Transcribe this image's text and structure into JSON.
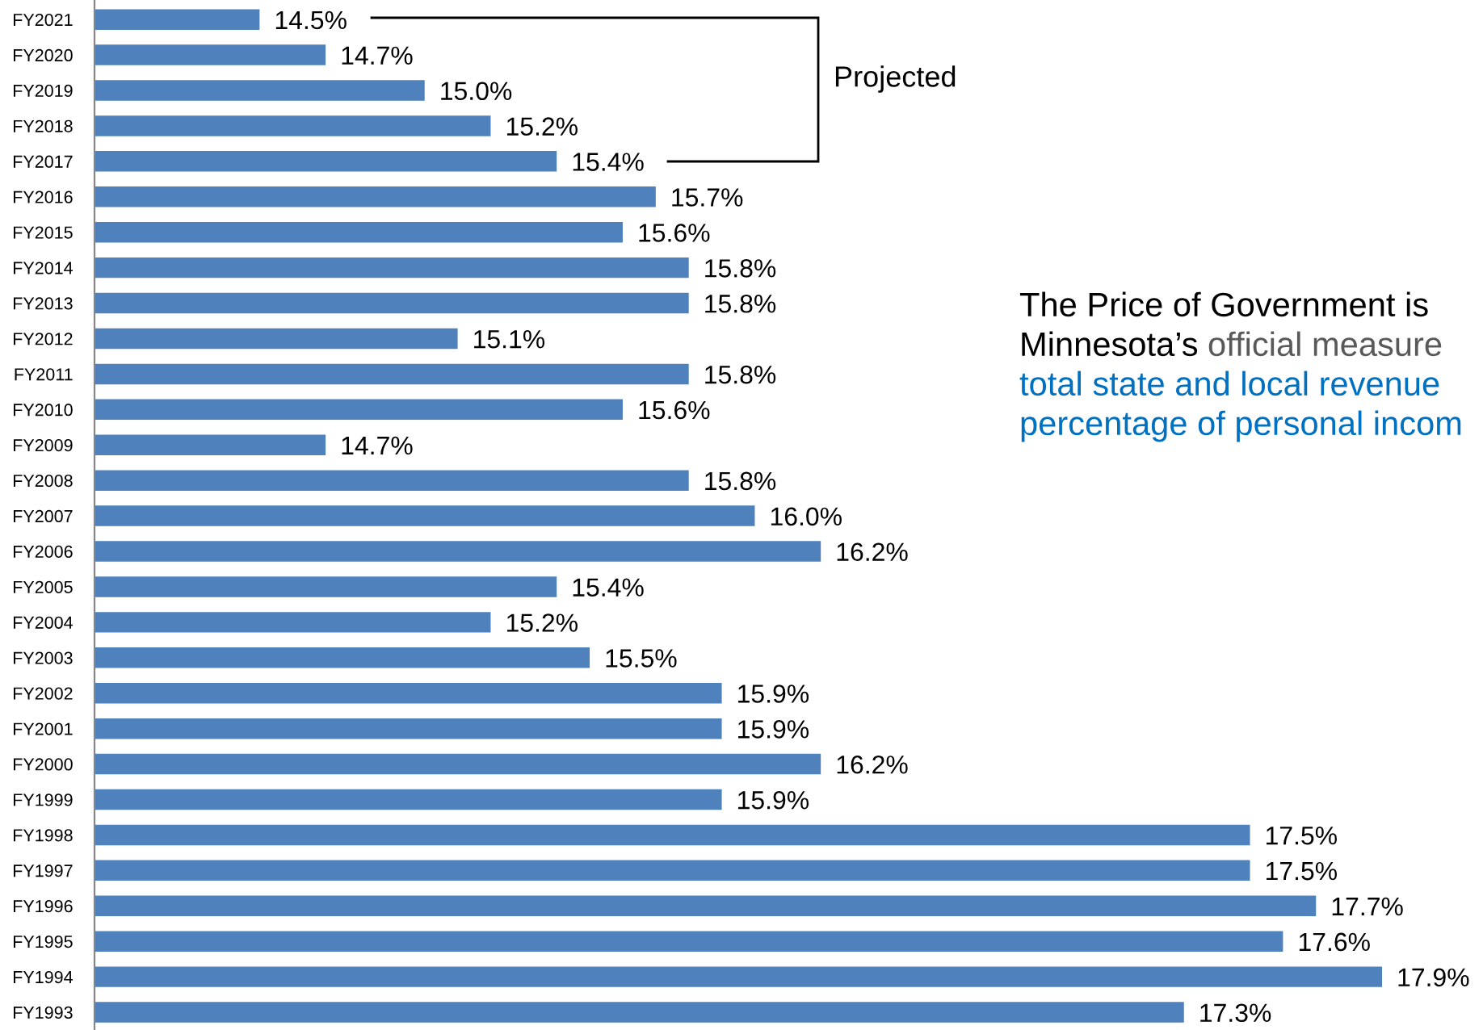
{
  "chart_data": {
    "type": "bar",
    "orientation": "horizontal",
    "categories": [
      "FY2021",
      "FY2020",
      "FY2019",
      "FY2018",
      "FY2017",
      "FY2016",
      "FY2015",
      "FY2014",
      "FY2013",
      "FY2012",
      "FY2011",
      "FY2010",
      "FY2009",
      "FY2008",
      "FY2007",
      "FY2006",
      "FY2005",
      "FY2004",
      "FY2003",
      "FY2002",
      "FY2001",
      "FY2000",
      "FY1999",
      "FY1998",
      "FY1997",
      "FY1996",
      "FY1995",
      "FY1994",
      "FY1993"
    ],
    "values": [
      14.5,
      14.7,
      15.0,
      15.2,
      15.4,
      15.7,
      15.6,
      15.8,
      15.8,
      15.1,
      15.8,
      15.6,
      14.7,
      15.8,
      16.0,
      16.2,
      15.4,
      15.2,
      15.5,
      15.9,
      15.9,
      16.2,
      15.9,
      17.5,
      17.5,
      17.7,
      17.6,
      17.9,
      17.3
    ],
    "value_labels": [
      "14.5%",
      "14.7%",
      "15.0%",
      "15.2%",
      "15.4%",
      "15.7%",
      "15.6%",
      "15.8%",
      "15.8%",
      "15.1%",
      "15.8%",
      "15.6%",
      "14.7%",
      "15.8%",
      "16.0%",
      "16.2%",
      "15.4%",
      "15.2%",
      "15.5%",
      "15.9%",
      "15.9%",
      "16.2%",
      "15.9%",
      "17.5%",
      "17.5%",
      "17.7%",
      "17.6%",
      "17.9%",
      "17.3%"
    ],
    "color": "#4f81bd",
    "tick_labels": "y",
    "annotations": [
      "Projected",
      "The Price of Government is",
      "Minnesota’s",
      "official measure",
      "total state and local revenue",
      "percentage of personal incom"
    ]
  }
}
